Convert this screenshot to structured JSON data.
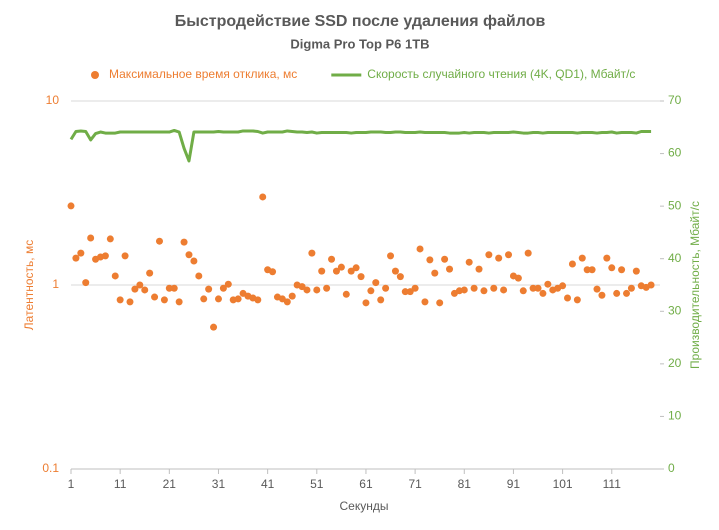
{
  "chart_data": {
    "type": "combo",
    "title": "Быстродействие SSD после удаления файлов",
    "subtitle": "Digma Pro Top P6 1TB",
    "x_label": "Секунды",
    "y_label": "Латентность, мс",
    "y2_label": "Производительность, Мбайт/с",
    "legend": "top",
    "grid": true,
    "ylog": true,
    "xlim": [
      1,
      120
    ],
    "xticks": [
      1,
      11,
      21,
      31,
      41,
      51,
      61,
      71,
      81,
      91,
      101,
      111
    ],
    "ylim": [
      0.1,
      10
    ],
    "yticks": [
      0.1,
      1,
      10
    ],
    "y2lim": [
      0,
      70
    ],
    "y2ticks": [
      0,
      10,
      20,
      30,
      40,
      50,
      60,
      70
    ],
    "x": [
      1,
      2,
      3,
      4,
      5,
      6,
      7,
      8,
      9,
      10,
      11,
      12,
      13,
      14,
      15,
      16,
      17,
      18,
      19,
      20,
      21,
      22,
      23,
      24,
      25,
      26,
      27,
      28,
      29,
      30,
      31,
      32,
      33,
      34,
      35,
      36,
      37,
      38,
      39,
      40,
      41,
      42,
      43,
      44,
      45,
      46,
      47,
      48,
      49,
      50,
      51,
      52,
      53,
      54,
      55,
      56,
      57,
      58,
      59,
      60,
      61,
      62,
      63,
      64,
      65,
      66,
      67,
      68,
      69,
      70,
      71,
      72,
      73,
      74,
      75,
      76,
      77,
      78,
      79,
      80,
      81,
      82,
      83,
      84,
      85,
      86,
      87,
      88,
      89,
      90,
      91,
      92,
      93,
      94,
      95,
      96,
      97,
      98,
      99,
      100,
      101,
      102,
      103,
      104,
      105,
      106,
      107,
      108,
      109,
      110,
      111,
      112,
      113,
      114,
      115,
      116,
      117,
      118,
      119
    ],
    "series": [
      {
        "name": "Максимальное время отклика, мс",
        "type": "scatter",
        "color": "#ed7d31",
        "values": [
          2.69,
          1.4,
          1.49,
          1.03,
          1.8,
          1.38,
          1.42,
          1.44,
          1.78,
          1.12,
          0.83,
          1.44,
          0.81,
          0.95,
          1.0,
          0.94,
          1.16,
          0.86,
          1.73,
          0.83,
          0.96,
          0.96,
          0.81,
          1.71,
          1.46,
          1.35,
          1.12,
          0.84,
          0.95,
          0.59,
          0.84,
          0.96,
          1.01,
          0.83,
          0.84,
          0.9,
          0.87,
          0.85,
          0.83,
          3.01,
          1.21,
          1.18,
          0.86,
          0.84,
          0.81,
          0.87,
          1.0,
          0.98,
          0.94,
          1.49,
          0.94,
          1.19,
          0.96,
          1.38,
          1.19,
          1.25,
          0.89,
          1.19,
          1.24,
          1.11,
          0.8,
          0.93,
          1.03,
          0.83,
          0.96,
          1.44,
          1.19,
          1.11,
          0.92,
          0.92,
          0.96,
          1.57,
          0.81,
          1.37,
          1.16,
          0.8,
          1.38,
          1.22,
          0.9,
          0.93,
          0.94,
          1.33,
          0.96,
          1.22,
          0.93,
          1.46,
          0.96,
          1.4,
          0.94,
          1.46,
          1.12,
          1.09,
          0.93,
          1.49,
          0.96,
          0.96,
          0.9,
          1.01,
          0.94,
          0.96,
          0.99,
          0.85,
          1.3,
          0.83,
          1.4,
          1.21,
          1.21,
          0.95,
          0.88,
          1.4,
          1.24,
          0.9,
          1.21,
          0.9,
          0.96,
          1.19,
          0.99,
          0.97,
          1.0
        ]
      },
      {
        "name": "Скорость случайного чтения (4K, QD1), Мбайт/с",
        "type": "line",
        "axis": "y2",
        "color": "#70ad47",
        "values": [
          62.7,
          64.2,
          64.3,
          64.2,
          62.6,
          63.8,
          64.1,
          63.9,
          63.9,
          63.9,
          64.1,
          64.1,
          64.1,
          64.1,
          64.1,
          64.1,
          64.1,
          64.1,
          64.1,
          64.1,
          64.1,
          64.4,
          64.1,
          61.0,
          58.6,
          64.1,
          64.1,
          64.1,
          64.1,
          64.1,
          64.2,
          64.1,
          64.1,
          64.1,
          64.1,
          64.3,
          64.3,
          64.3,
          64.2,
          63.9,
          64.1,
          64.1,
          64.1,
          64.1,
          64.3,
          64.2,
          64.1,
          64.1,
          64.0,
          64.1,
          63.9,
          64.0,
          64.0,
          64.0,
          64.0,
          64.0,
          64.0,
          63.9,
          64.0,
          64.0,
          64.0,
          64.1,
          64.1,
          64.1,
          64.0,
          64.0,
          64.1,
          64.1,
          64.0,
          64.0,
          64.0,
          64.1,
          64.0,
          64.0,
          64.0,
          64.0,
          64.0,
          63.9,
          63.9,
          63.9,
          64.0,
          63.9,
          64.0,
          64.0,
          64.0,
          63.9,
          64.0,
          64.0,
          64.0,
          64.0,
          64.1,
          64.0,
          63.9,
          63.9,
          64.0,
          64.0,
          63.9,
          64.0,
          64.0,
          64.0,
          64.0,
          64.0,
          64.0,
          63.9,
          64.0,
          64.0,
          64.0,
          63.9,
          64.0,
          64.0,
          64.1,
          63.9,
          64.0,
          64.0,
          64.0,
          63.9,
          64.2,
          64.2,
          64.2
        ]
      }
    ]
  }
}
